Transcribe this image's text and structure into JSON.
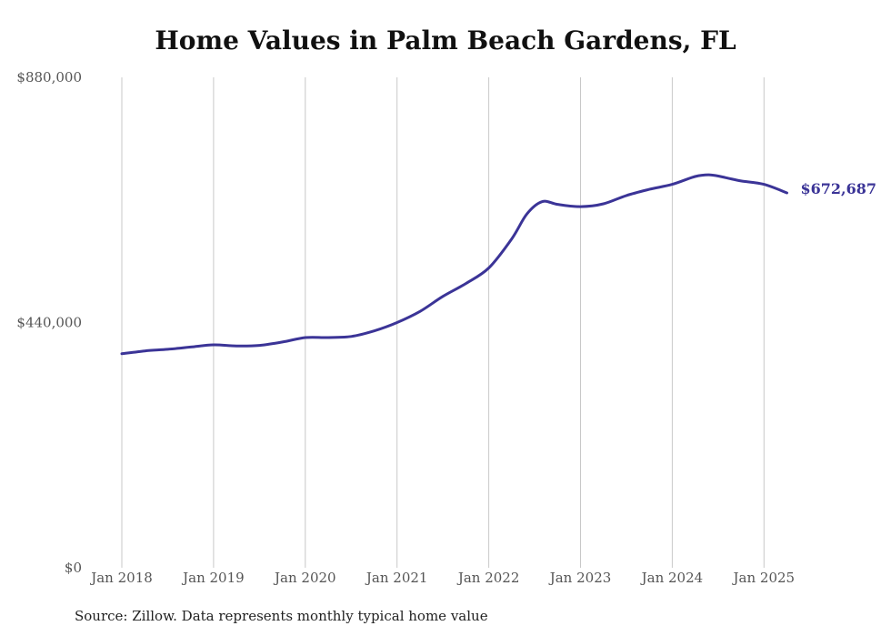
{
  "chart_data": {
    "type": "line",
    "title": "Home Values in Palm Beach Gardens, FL",
    "xlabel": "",
    "ylabel": "",
    "x_ticks": [
      "Jan 2018",
      "Jan 2019",
      "Jan 2020",
      "Jan 2021",
      "Jan 2022",
      "Jan 2023",
      "Jan 2024",
      "Jan 2025"
    ],
    "y_ticks": [
      "$0",
      "$440,000",
      "$880,000"
    ],
    "ylim": [
      0,
      880000
    ],
    "grid": "vertical",
    "line_color": "#3b3497",
    "series": [
      {
        "x": [
          "2018-01",
          "2018-04",
          "2018-07",
          "2018-10",
          "2019-01",
          "2019-04",
          "2019-07",
          "2019-10",
          "2020-01",
          "2020-04",
          "2020-07",
          "2020-10",
          "2021-01",
          "2021-04",
          "2021-07",
          "2021-10",
          "2022-01",
          "2022-04",
          "2022-06",
          "2022-08",
          "2022-10",
          "2023-01",
          "2023-04",
          "2023-07",
          "2023-10",
          "2024-01",
          "2024-04",
          "2024-06",
          "2024-08",
          "2024-10",
          "2025-01",
          "2025-04"
        ],
        "values": [
          384000,
          389000,
          392000,
          396000,
          400000,
          398000,
          399000,
          405000,
          413000,
          413000,
          415000,
          425000,
          440000,
          460000,
          487000,
          510000,
          538000,
          590000,
          635000,
          657000,
          652000,
          648000,
          653000,
          668000,
          679000,
          688000,
          702000,
          705000,
          700000,
          694000,
          688000,
          672687
        ]
      }
    ],
    "end_label": "$672,687"
  },
  "source": "Source: Zillow. Data represents monthly typical home value"
}
